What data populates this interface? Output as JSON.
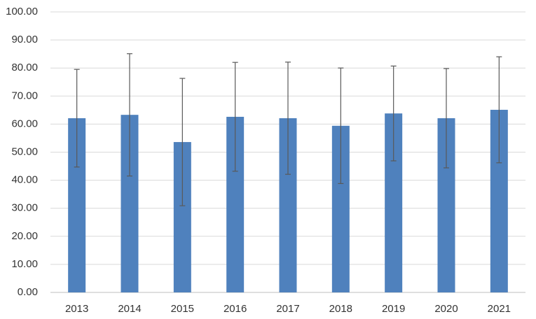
{
  "chart_data": {
    "type": "bar",
    "categories": [
      "2013",
      "2014",
      "2015",
      "2016",
      "2017",
      "2018",
      "2019",
      "2020",
      "2021"
    ],
    "values": [
      62.1,
      63.3,
      53.6,
      62.6,
      62.1,
      59.4,
      63.8,
      62.1,
      65.1
    ],
    "errors": [
      17.4,
      21.8,
      22.7,
      19.4,
      20.0,
      20.6,
      16.9,
      17.7,
      18.9
    ],
    "color": "#4f81bd",
    "error_color": "#595959",
    "ylim": [
      0,
      100
    ],
    "yticks": [
      {
        "value": 0,
        "label": "0.00"
      },
      {
        "value": 10,
        "label": "10.00"
      },
      {
        "value": 20,
        "label": "20.00"
      },
      {
        "value": 30,
        "label": "30.00"
      },
      {
        "value": 40,
        "label": "40.00"
      },
      {
        "value": 50,
        "label": "50.00"
      },
      {
        "value": 60,
        "label": "60.00"
      },
      {
        "value": 70,
        "label": "70.00"
      },
      {
        "value": 80,
        "label": "80.00"
      },
      {
        "value": 90,
        "label": "90.00"
      },
      {
        "value": 100,
        "label": "100.00"
      }
    ],
    "grid": true
  }
}
